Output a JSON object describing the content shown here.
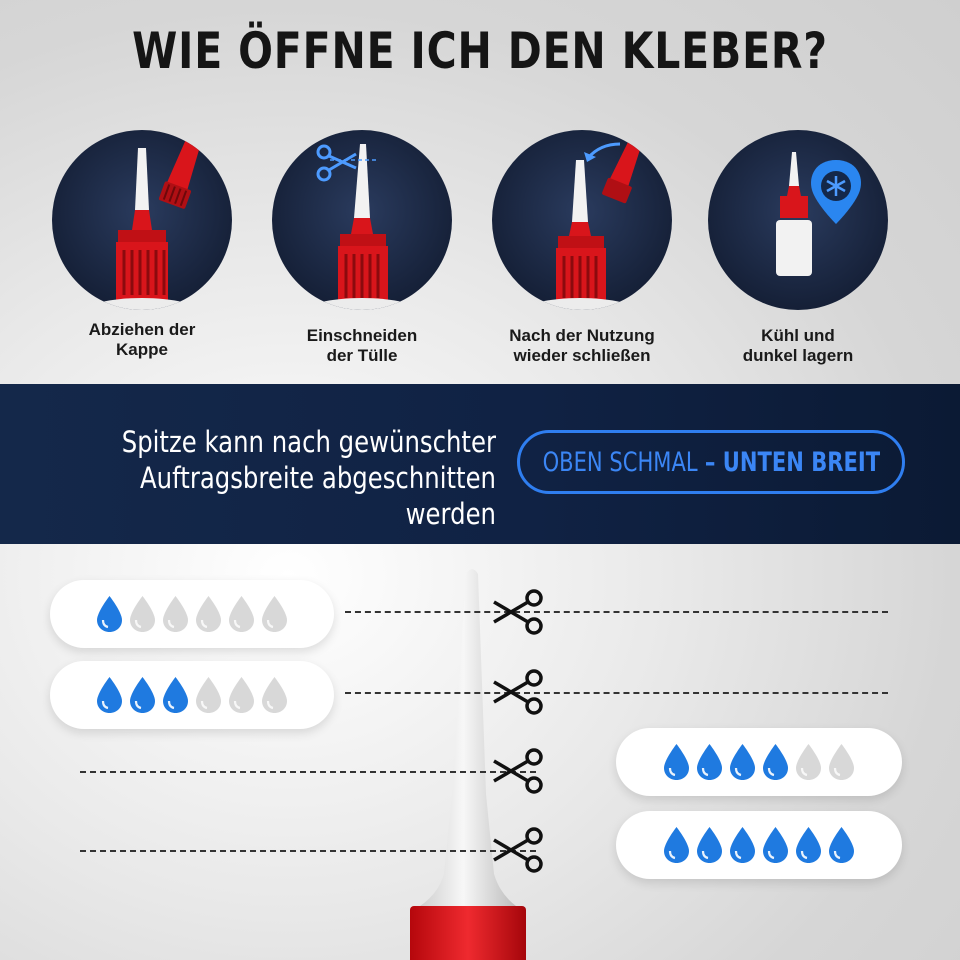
{
  "header": {
    "title": "WIE ÖFFNE ICH DEN KLEBER?"
  },
  "steps": [
    {
      "line1": "Abziehen der",
      "line2": "Kappe",
      "icon": "bottle-cap-off-icon"
    },
    {
      "line1": "Einschneiden",
      "line2": "der Tülle",
      "icon": "cut-nozzle-icon"
    },
    {
      "line1": "Nach der Nutzung",
      "line2": "wieder schließen",
      "icon": "close-cap-icon"
    },
    {
      "line1": "Kühl und",
      "line2": "dunkel lagern",
      "icon": "storage-location-icon"
    }
  ],
  "band": {
    "line1": "Spitze kann nach gewünschter",
    "line2": "Auftragsbreite abgeschnitten werden",
    "pill_a": "OBEN SCHMAL",
    "pill_b": " – UNTEN BREIT"
  },
  "ratings": [
    {
      "filled": 1,
      "total": 6
    },
    {
      "filled": 3,
      "total": 6
    },
    {
      "filled": 4,
      "total": 6
    },
    {
      "filled": 6,
      "total": 6
    }
  ],
  "colors": {
    "accent": "#1f7ae0",
    "drop_empty": "#d8d8d8",
    "cap_red": "#d9151b",
    "band": "#102244",
    "circle": "#1b2a48"
  }
}
